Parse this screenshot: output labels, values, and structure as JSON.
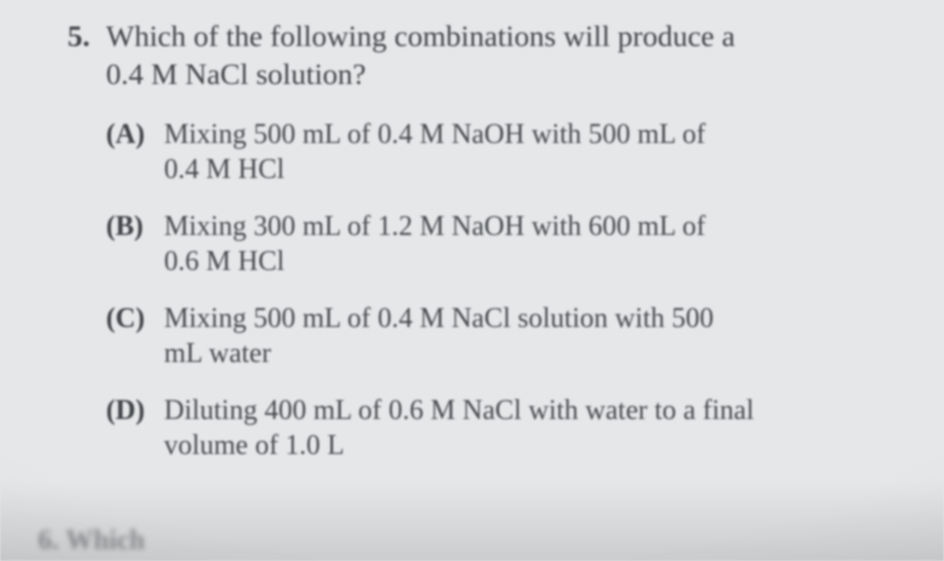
{
  "question": {
    "number": "5.",
    "stem_line1": "Which of the following combinations will produce a",
    "stem_line2": "0.4 M NaCl solution?"
  },
  "choices": [
    {
      "label": "(A)",
      "line1": "Mixing 500 mL of 0.4 M NaOH with 500 mL of",
      "line2": "0.4 M HCl"
    },
    {
      "label": "(B)",
      "line1": "Mixing 300 mL of 1.2 M NaOH with 600 mL of",
      "line2": "0.6 M HCl"
    },
    {
      "label": "(C)",
      "line1": "Mixing 500 mL of 0.4 M NaCl solution with 500",
      "line2": "mL water"
    },
    {
      "label": "(D)",
      "line1": "Diluting 400 mL of 0.6 M NaCl with water to a final",
      "line2": "volume of 1.0 L"
    }
  ],
  "peek": "6.   Which"
}
